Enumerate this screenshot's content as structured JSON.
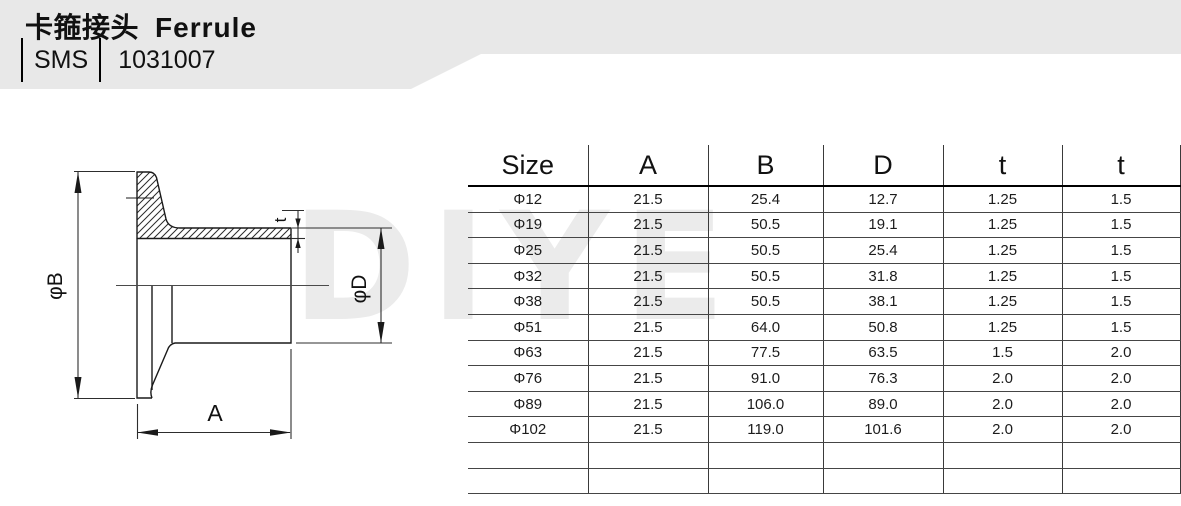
{
  "header": {
    "title_zh": "卡箍接头",
    "title_en": "Ferrule",
    "standard": "SMS",
    "part_number": "1031007"
  },
  "watermark": "DIYE",
  "drawing": {
    "labels": {
      "phi_b": "φB",
      "phi_d": "φD",
      "t": "t",
      "a": "A"
    }
  },
  "table": {
    "columns": [
      "Size",
      "A",
      "B",
      "D",
      "t",
      "t"
    ],
    "rows": [
      [
        "Φ12",
        "21.5",
        "25.4",
        "12.7",
        "1.25",
        "1.5"
      ],
      [
        "Φ19",
        "21.5",
        "50.5",
        "19.1",
        "1.25",
        "1.5"
      ],
      [
        "Φ25",
        "21.5",
        "50.5",
        "25.4",
        "1.25",
        "1.5"
      ],
      [
        "Φ32",
        "21.5",
        "50.5",
        "31.8",
        "1.25",
        "1.5"
      ],
      [
        "Φ38",
        "21.5",
        "50.5",
        "38.1",
        "1.25",
        "1.5"
      ],
      [
        "Φ51",
        "21.5",
        "64.0",
        "50.8",
        "1.25",
        "1.5"
      ],
      [
        "Φ63",
        "21.5",
        "77.5",
        "63.5",
        "1.5",
        "2.0"
      ],
      [
        "Φ76",
        "21.5",
        "91.0",
        "76.3",
        "2.0",
        "2.0"
      ],
      [
        "Φ89",
        "21.5",
        "106.0",
        "89.0",
        "2.0",
        "2.0"
      ],
      [
        "Φ102",
        "21.5",
        "119.0",
        "101.6",
        "2.0",
        "2.0"
      ]
    ],
    "empty_row_count": 2
  },
  "colors": {
    "band_bg": "#e8e8e8",
    "table_line": "#3a3a3a",
    "header_rule": "#000000",
    "watermark": "#ebebeb",
    "text": "#111111"
  }
}
